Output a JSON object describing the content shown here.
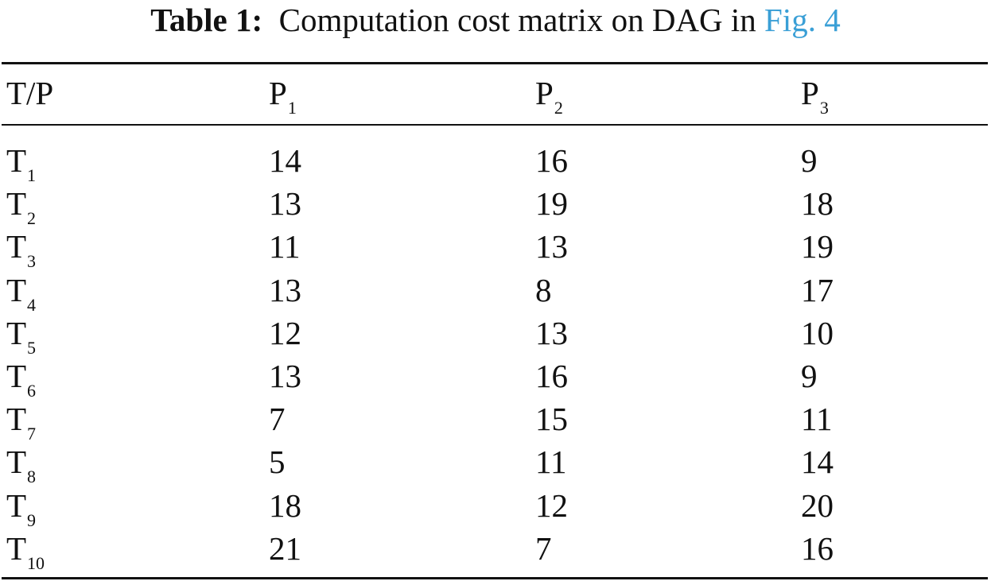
{
  "caption": {
    "label": "Table 1:",
    "text": "Computation cost matrix on DAG in",
    "link": "Fig. 4"
  },
  "table": {
    "header": [
      {
        "base": "T/P",
        "sub": ""
      },
      {
        "base": "P",
        "sub": "1"
      },
      {
        "base": "P",
        "sub": "2"
      },
      {
        "base": "P",
        "sub": "3"
      }
    ],
    "rows": [
      {
        "task": {
          "base": "T",
          "sub": "1"
        },
        "values": [
          "14",
          "16",
          "9"
        ]
      },
      {
        "task": {
          "base": "T",
          "sub": "2"
        },
        "values": [
          "13",
          "19",
          "18"
        ]
      },
      {
        "task": {
          "base": "T",
          "sub": "3"
        },
        "values": [
          "11",
          "13",
          "19"
        ]
      },
      {
        "task": {
          "base": "T",
          "sub": "4"
        },
        "values": [
          "13",
          "8",
          "17"
        ]
      },
      {
        "task": {
          "base": "T",
          "sub": "5"
        },
        "values": [
          "12",
          "13",
          "10"
        ]
      },
      {
        "task": {
          "base": "T",
          "sub": "6"
        },
        "values": [
          "13",
          "16",
          "9"
        ]
      },
      {
        "task": {
          "base": "T",
          "sub": "7"
        },
        "values": [
          "7",
          "15",
          "11"
        ]
      },
      {
        "task": {
          "base": "T",
          "sub": "8"
        },
        "values": [
          "5",
          "11",
          "14"
        ]
      },
      {
        "task": {
          "base": "T",
          "sub": "9"
        },
        "values": [
          "18",
          "12",
          "20"
        ]
      },
      {
        "task": {
          "base": "T",
          "sub": "10"
        },
        "values": [
          "21",
          "7",
          "16"
        ]
      }
    ]
  }
}
